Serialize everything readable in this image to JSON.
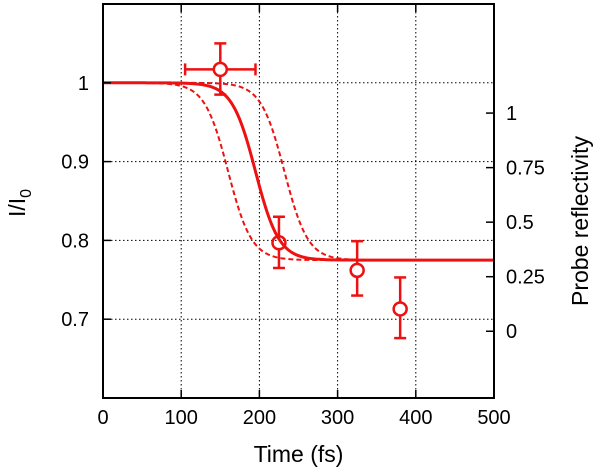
{
  "chart_data": {
    "type": "scatter",
    "title": "",
    "xlabel": "Time (fs)",
    "ylabel": "I/I",
    "ylabel_subscript": "0",
    "y2label": "Probe reflectivity",
    "xlim": [
      0,
      500
    ],
    "ylim": [
      0.6,
      1.1
    ],
    "xticks": [
      0,
      100,
      200,
      300,
      400,
      500
    ],
    "yticks": [
      0.7,
      0.8,
      0.9,
      1
    ],
    "ytick_labels": [
      "0.7",
      "0.8",
      "0.9",
      "1"
    ],
    "y2lim": [
      -0.306,
      1.5
    ],
    "y2ticks": [
      0,
      0.25,
      0.5,
      0.75,
      1
    ],
    "y2tick_labels": [
      "0",
      "0.25",
      "0.5",
      "0.75",
      "1"
    ],
    "grid": true,
    "color": "#ee1111",
    "points": [
      {
        "x": 150,
        "y": 1.017,
        "xerr": 45,
        "yerr_low": 0.032,
        "yerr_high": 0.033
      },
      {
        "x": 225,
        "y": 0.797,
        "xerr": 0,
        "yerr_low": 0.032,
        "yerr_high": 0.033
      },
      {
        "x": 325,
        "y": 0.762,
        "xerr": 0,
        "yerr_low": 0.032,
        "yerr_high": 0.037
      },
      {
        "x": 380,
        "y": 0.713,
        "xerr": 0,
        "yerr_low": 0.037,
        "yerr_high": 0.04
      }
    ],
    "fit_curve": {
      "style": "solid",
      "high": 1.0,
      "low": 0.775,
      "center": 195,
      "width": 15
    },
    "bound_curves": [
      {
        "style": "dashed",
        "high": 1.0,
        "low": 0.775,
        "center": 160,
        "width": 15
      },
      {
        "style": "dashed",
        "high": 1.0,
        "low": 0.775,
        "center": 232,
        "width": 15
      }
    ]
  }
}
